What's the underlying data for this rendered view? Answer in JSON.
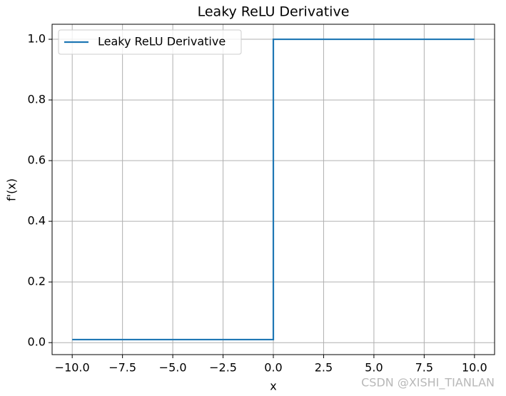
{
  "chart_data": {
    "type": "line",
    "title": "Leaky ReLU Derivative",
    "xlabel": "x",
    "ylabel": "f'(x)",
    "x": [
      -10,
      0,
      0,
      10
    ],
    "series": [
      {
        "name": "Leaky ReLU Derivative",
        "color": "#1f77b4",
        "values": [
          0.01,
          0.01,
          1,
          1
        ]
      }
    ],
    "xlim": [
      -11,
      11
    ],
    "ylim": [
      -0.0395,
      1.0495
    ],
    "xticks": [
      {
        "value": -10,
        "label": "−10.0"
      },
      {
        "value": -7.5,
        "label": "−7.5"
      },
      {
        "value": -5,
        "label": "−5.0"
      },
      {
        "value": -2.5,
        "label": "−2.5"
      },
      {
        "value": 0,
        "label": "0.0"
      },
      {
        "value": 2.5,
        "label": "2.5"
      },
      {
        "value": 5,
        "label": "5.0"
      },
      {
        "value": 7.5,
        "label": "7.5"
      },
      {
        "value": 10,
        "label": "10.0"
      }
    ],
    "yticks": [
      {
        "value": 0,
        "label": "0.0"
      },
      0.2,
      0.4,
      0.6,
      0.8,
      {
        "value": 1,
        "label": "1.0"
      }
    ],
    "grid": true,
    "legend": "upper left",
    "watermark": "CSDN @XISHI_TIANLAN"
  }
}
